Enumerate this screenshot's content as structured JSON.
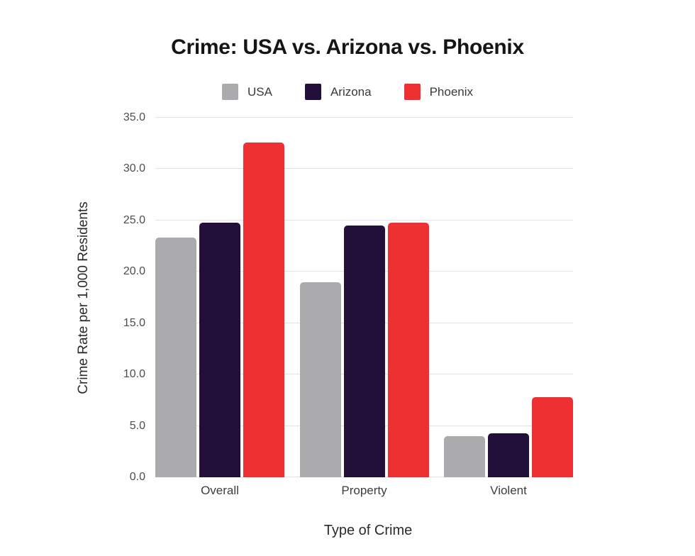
{
  "chart_data": {
    "type": "bar",
    "title": "Crime: USA vs. Arizona vs. Phoenix",
    "xlabel": "Type of Crime",
    "ylabel": "Crime Rate per 1,000 Residents",
    "categories": [
      "Overall",
      "Property",
      "Violent"
    ],
    "series": [
      {
        "name": "USA",
        "color": "#ABABAD",
        "values": [
          23.3,
          19.0,
          4.0
        ]
      },
      {
        "name": "Arizona",
        "color": "#23103A",
        "values": [
          24.8,
          24.5,
          4.3
        ]
      },
      {
        "name": "Phoenix",
        "color": "#EE3033",
        "values": [
          32.6,
          24.8,
          7.8
        ]
      }
    ],
    "ylim": [
      0,
      35
    ],
    "ytick_step": 5,
    "ytick_labels": [
      "0.0",
      "5.0",
      "10.0",
      "15.0",
      "20.0",
      "25.0",
      "30.0",
      "35.0"
    ],
    "grid": true,
    "legend_position": "top",
    "colors": {
      "grid": "#e2e2e2",
      "title_text": "#151515",
      "tick_text": "#4d4d4d",
      "axis_title_text": "#2b2b2b",
      "background": "#ffffff"
    }
  }
}
